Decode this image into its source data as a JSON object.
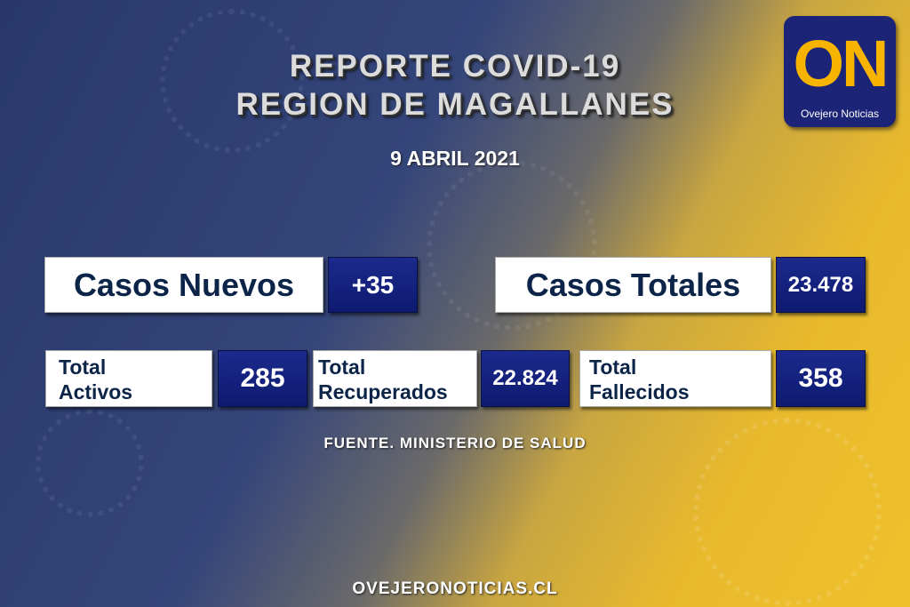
{
  "header": {
    "title_line1": "REPORTE COVID-19",
    "title_line2": "REGION DE MAGALLANES",
    "date": "9 ABRIL 2021"
  },
  "logo": {
    "letters": "ON",
    "name": "Ovejero Noticias"
  },
  "stats": {
    "nuevos": {
      "label": "Casos Nuevos",
      "value": "+35"
    },
    "totales": {
      "label": "Casos Totales",
      "value": "23.478"
    },
    "activos": {
      "label_line1": "Total",
      "label_line2": "Activos",
      "value": "285"
    },
    "recuperados": {
      "label_line1": "Total",
      "label_line2": "Recuperados",
      "value": "22.824"
    },
    "fallecidos": {
      "label_line1": "Total",
      "label_line2": "Fallecidos",
      "value": "358"
    }
  },
  "source": "FUENTE. MINISTERIO DE SALUD",
  "website": "OVEJERONOTICIAS.CL",
  "colors": {
    "blue": "#28386a",
    "yellow": "#f0c12c",
    "value_box": "#1b2a8c",
    "label_text": "#0b2447"
  }
}
